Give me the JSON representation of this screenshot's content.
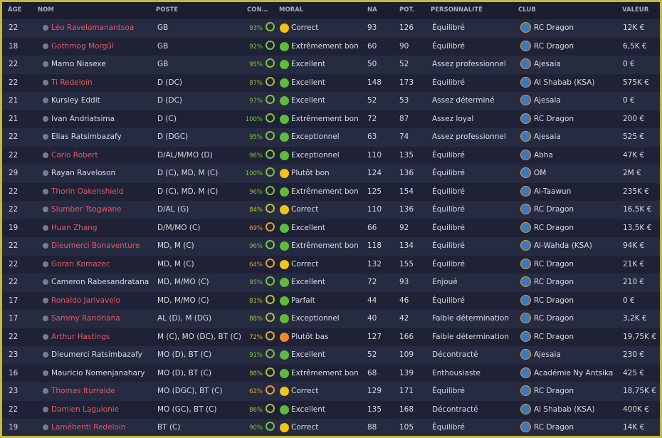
{
  "table": {
    "headers": [
      "ÂGE",
      "NOM",
      "POSTE",
      "CON…",
      "MORAL",
      "NA",
      "POT.",
      "PERSONNALITÉ",
      "CLUB",
      "VALEUR"
    ],
    "rows": [
      {
        "age": "22",
        "name": "Léo Ravelomanantsoa",
        "position": "GB",
        "condition": "93%",
        "morale": "Correct",
        "na": "93",
        "pot": "126",
        "personality": "Équilibré",
        "club": "RC Dragon",
        "value": "12K €",
        "name_color": "#e25866",
        "condition_color": "#7cc43c",
        "morale_color": "#f0c419"
      },
      {
        "age": "18",
        "name": "Gothmog Morgûl",
        "position": "GB",
        "condition": "92%",
        "morale": "Extrêmement bon",
        "na": "60",
        "pot": "90",
        "personality": "Équilibré",
        "club": "RC Dragon",
        "value": "6,5K €",
        "name_color": "#e25866",
        "condition_color": "#7cc43c",
        "morale_color": "#5dbb3d"
      },
      {
        "age": "22",
        "name": "Mamo Niasexe",
        "position": "GB",
        "condition": "95%",
        "morale": "Excellent",
        "na": "50",
        "pot": "52",
        "personality": "Assez professionnel",
        "club": "Ajesaia",
        "value": "0 €",
        "name_color": "#d8dae0",
        "condition_color": "#7cc43c",
        "morale_color": "#5dbb3d"
      },
      {
        "age": "22",
        "name": "Ti Redeloin",
        "position": "D (DC)",
        "condition": "87%",
        "morale": "Excellent",
        "na": "148",
        "pot": "173",
        "personality": "Équilibré",
        "club": "Al Shabab (KSA)",
        "value": "575K €",
        "name_color": "#e25866",
        "condition_color": "#a8c23a",
        "morale_color": "#5dbb3d"
      },
      {
        "age": "21",
        "name": "Kursley Eddit",
        "position": "D (DC)",
        "condition": "97%",
        "morale": "Excellent",
        "na": "52",
        "pot": "53",
        "personality": "Assez déterminé",
        "club": "Ajesaia",
        "value": "0 €",
        "name_color": "#d8dae0",
        "condition_color": "#7cc43c",
        "morale_color": "#5dbb3d"
      },
      {
        "age": "21",
        "name": "Ivan Andriatsima",
        "position": "D (C)",
        "condition": "100%",
        "morale": "Extrêmement bon",
        "na": "72",
        "pot": "87",
        "personality": "Assez loyal",
        "club": "RC Dragon",
        "value": "200 €",
        "name_color": "#d8dae0",
        "condition_color": "#7cc43c",
        "morale_color": "#5dbb3d"
      },
      {
        "age": "22",
        "name": "Elias Ratsimbazafy",
        "position": "D (DGC)",
        "condition": "95%",
        "morale": "Exceptionnel",
        "na": "63",
        "pot": "74",
        "personality": "Assez professionnel",
        "club": "Ajesaia",
        "value": "525 €",
        "name_color": "#d8dae0",
        "condition_color": "#7cc43c",
        "morale_color": "#5dbb3d"
      },
      {
        "age": "22",
        "name": "Carlo Robert",
        "position": "D/AL/M/MO (D)",
        "condition": "96%",
        "morale": "Exceptionnel",
        "na": "110",
        "pot": "135",
        "personality": "Équilibré",
        "club": "Abha",
        "value": "47K €",
        "name_color": "#e25866",
        "condition_color": "#7cc43c",
        "morale_color": "#5dbb3d"
      },
      {
        "age": "29",
        "name": "Rayan Raveloson",
        "position": "D (C), MD, M (C)",
        "condition": "100%",
        "morale": "Plutôt bon",
        "na": "124",
        "pot": "136",
        "personality": "Équilibré",
        "club": "OM",
        "value": "2M €",
        "name_color": "#d8dae0",
        "condition_color": "#7cc43c",
        "morale_color": "#f0c419"
      },
      {
        "age": "22",
        "name": "Thorin Oakenshield",
        "position": "D (C), MD, M (C)",
        "condition": "96%",
        "morale": "Extrêmement bon",
        "na": "125",
        "pot": "154",
        "personality": "Équilibré",
        "club": "Al-Taawun",
        "value": "235K €",
        "name_color": "#e25866",
        "condition_color": "#7cc43c",
        "morale_color": "#5dbb3d"
      },
      {
        "age": "22",
        "name": "Slumber Tsogwane",
        "position": "D/AL (G)",
        "condition": "84%",
        "morale": "Correct",
        "na": "110",
        "pot": "136",
        "personality": "Équilibré",
        "club": "RC Dragon",
        "value": "16,5K €",
        "name_color": "#e25866",
        "condition_color": "#b8c23a",
        "morale_color": "#f0c419"
      },
      {
        "age": "19",
        "name": "Huan Zhang",
        "position": "D/M/MO (C)",
        "condition": "69%",
        "morale": "Excellent",
        "na": "66",
        "pot": "92",
        "personality": "Équilibré",
        "club": "RC Dragon",
        "value": "13,5K €",
        "name_color": "#e25866",
        "condition_color": "#e0a030",
        "morale_color": "#5dbb3d"
      },
      {
        "age": "22",
        "name": "Dieumerci Bonaventure",
        "position": "MD, M (C)",
        "condition": "96%",
        "morale": "Extrêmement bon",
        "na": "118",
        "pot": "134",
        "personality": "Équilibré",
        "club": "Al-Wahda (KSA)",
        "value": "94K €",
        "name_color": "#e25866",
        "condition_color": "#7cc43c",
        "morale_color": "#5dbb3d"
      },
      {
        "age": "22",
        "name": "Goran Komazec",
        "position": "MD, M (C)",
        "condition": "64%",
        "morale": "Correct",
        "na": "132",
        "pot": "155",
        "personality": "Équilibré",
        "club": "RC Dragon",
        "value": "21K €",
        "name_color": "#e25866",
        "condition_color": "#e0a030",
        "morale_color": "#f0c419"
      },
      {
        "age": "22",
        "name": "Cameron Rabesandratana",
        "position": "MD, M/MO (C)",
        "condition": "95%",
        "morale": "Excellent",
        "na": "72",
        "pot": "93",
        "personality": "Enjoué",
        "club": "RC Dragon",
        "value": "210 €",
        "name_color": "#d8dae0",
        "condition_color": "#7cc43c",
        "morale_color": "#5dbb3d"
      },
      {
        "age": "17",
        "name": "Ronaldo Jarivavelo",
        "position": "MD, M/MO (C)",
        "condition": "81%",
        "morale": "Parfait",
        "na": "44",
        "pot": "46",
        "personality": "Équilibré",
        "club": "RC Dragon",
        "value": "0 €",
        "name_color": "#e25866",
        "condition_color": "#b8c23a",
        "morale_color": "#5dbb3d"
      },
      {
        "age": "17",
        "name": "Sammy Randriana",
        "position": "AL (D), M (DG)",
        "condition": "88%",
        "morale": "Exceptionnel",
        "na": "40",
        "pot": "42",
        "personality": "Faible détermination",
        "club": "RC Dragon",
        "value": "3,2K €",
        "name_color": "#e25866",
        "condition_color": "#a8c23a",
        "morale_color": "#5dbb3d"
      },
      {
        "age": "22",
        "name": "Arthur Hastings",
        "position": "M (C), MO (DC), BT (C)",
        "condition": "72%",
        "morale": "Plutôt bas",
        "na": "127",
        "pot": "166",
        "personality": "Faible détermination",
        "club": "RC Dragon",
        "value": "19,75K €",
        "name_color": "#e25866",
        "condition_color": "#d8b030",
        "morale_color": "#f08a2a"
      },
      {
        "age": "23",
        "name": "Dieumerci Ratsimbazafy",
        "position": "MO (D), BT (C)",
        "condition": "91%",
        "morale": "Excellent",
        "na": "52",
        "pot": "109",
        "personality": "Décontracté",
        "club": "Ajesaia",
        "value": "230 €",
        "name_color": "#d8dae0",
        "condition_color": "#7cc43c",
        "morale_color": "#5dbb3d"
      },
      {
        "age": "16",
        "name": "Mauricio Nomenjanahary",
        "position": "MO (D), BT (C)",
        "condition": "88%",
        "morale": "Extrêmement bon",
        "na": "68",
        "pot": "139",
        "personality": "Enthousiaste",
        "club": "Académie Ny Antsika",
        "value": "425 €",
        "name_color": "#d8dae0",
        "condition_color": "#a8c23a",
        "morale_color": "#5dbb3d"
      },
      {
        "age": "23",
        "name": "Thomas Iturralde",
        "position": "MO (DGC), BT (C)",
        "condition": "62%",
        "morale": "Correct",
        "na": "129",
        "pot": "171",
        "personality": "Équilibré",
        "club": "RC Dragon",
        "value": "18,75K €",
        "name_color": "#e25866",
        "condition_color": "#e0a030",
        "morale_color": "#f0c419"
      },
      {
        "age": "22",
        "name": "Damien Laguionie",
        "position": "MO (GC), BT (C)",
        "condition": "86%",
        "morale": "Excellent",
        "na": "135",
        "pot": "168",
        "personality": "Décontracté",
        "club": "Al Shabab (KSA)",
        "value": "400K €",
        "name_color": "#e25866",
        "condition_color": "#a8c23a",
        "morale_color": "#5dbb3d"
      },
      {
        "age": "19",
        "name": "Laméhenti Redeloin",
        "position": "BT (C)",
        "condition": "90%",
        "morale": "Correct",
        "na": "88",
        "pot": "105",
        "personality": "Équilibré",
        "club": "RC Dragon",
        "value": "14K €",
        "name_color": "#e25866",
        "condition_color": "#7cc43c",
        "morale_color": "#f0c419"
      }
    ]
  }
}
